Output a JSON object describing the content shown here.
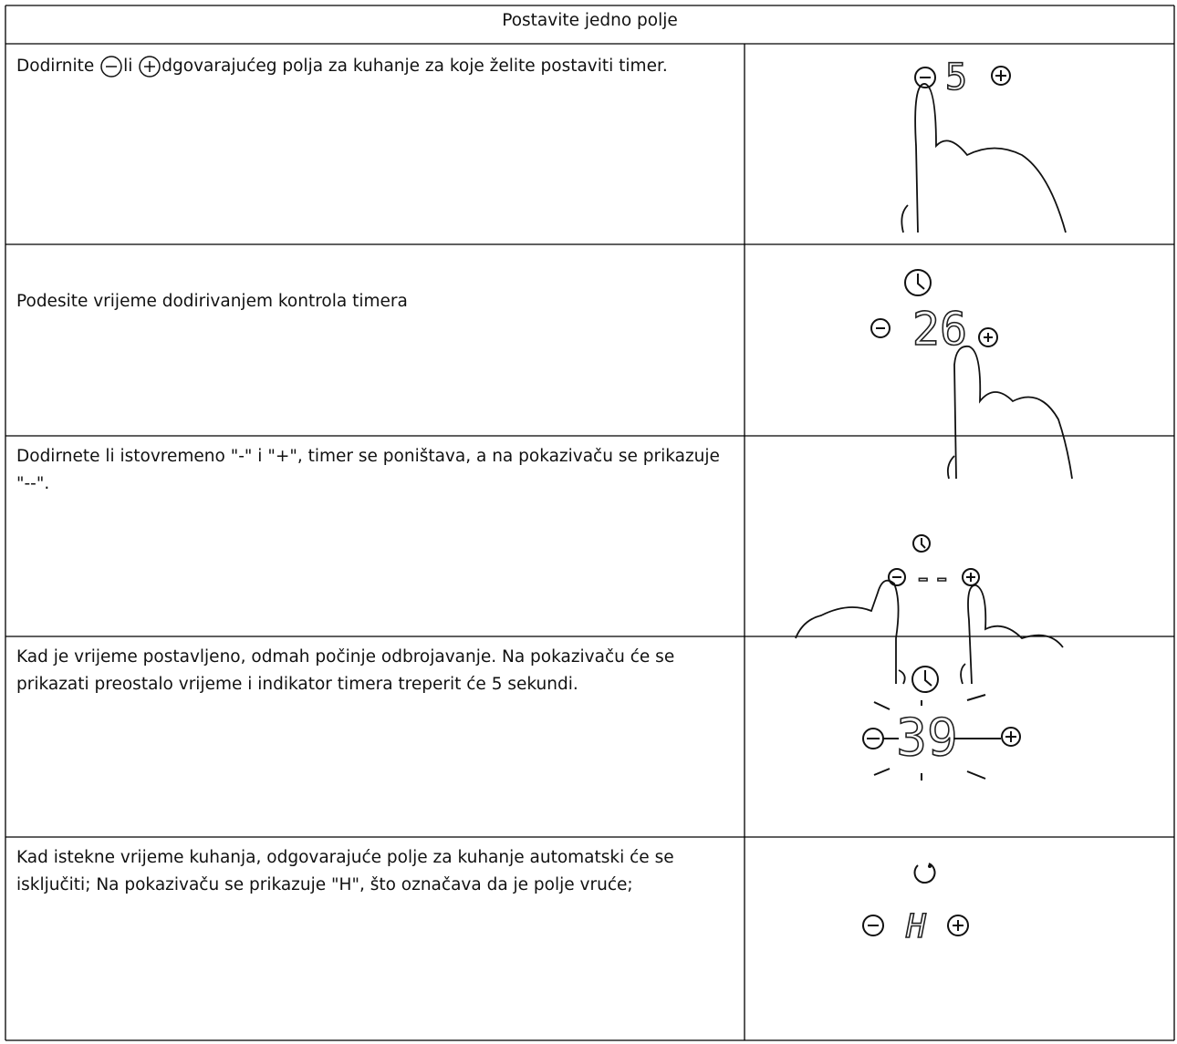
{
  "header": {
    "title": "Postavite jedno polje"
  },
  "rows": [
    {
      "text_parts": [
        "Dodirnite",
        "li",
        "dgovarajućeg polja za kuhanje za koje želite postaviti timer."
      ],
      "display": "5"
    },
    {
      "text": "Podesite vrijeme dodirivanjem kontrola timera",
      "display": "26"
    },
    {
      "text": "Dodirnete li istovremeno \"-\" i \"+\", timer se poništava, a na pokazivaču se prikazuje \"--\".",
      "display": "--"
    },
    {
      "text": "Kad je vrijeme postavljeno, odmah počinje odbrojavanje. Na pokazivaču će se prikazati preostalo vrijeme i indikator timera treperit će 5 sekundi.",
      "display": "39"
    },
    {
      "text": "Kad istekne vrijeme kuhanja, odgovarajuće polje za kuhanje automatski će se isključiti; Na pokazivaču se prikazuje \"H\", što označava da je polje vruće;",
      "display": "H"
    }
  ]
}
